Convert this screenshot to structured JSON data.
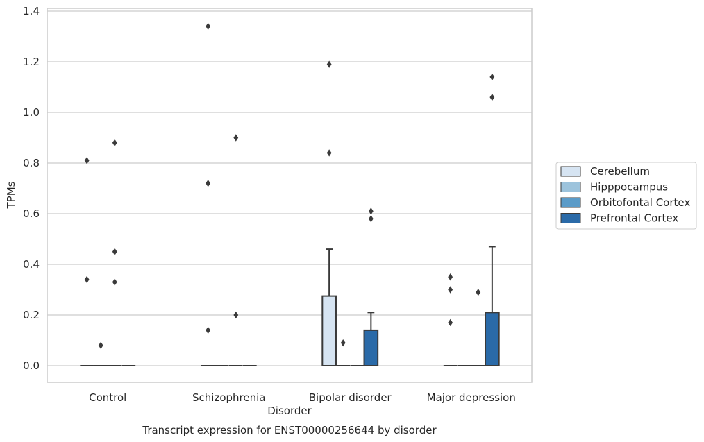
{
  "chart_data": {
    "type": "box",
    "title": "",
    "xlabel": "Disorder",
    "ylabel": "TPMs",
    "caption": "Transcript expression for ENST00000256644 by disorder",
    "categories": [
      "Control",
      "Schizophrenia",
      "Bipolar disorder",
      "Major depression"
    ],
    "ylim": [
      -0.065,
      1.41
    ],
    "yticks": [
      0.0,
      0.2,
      0.4,
      0.6,
      0.8,
      1.0,
      1.2,
      1.4
    ],
    "ytick_labels": [
      "0.0",
      "0.2",
      "0.4",
      "0.6",
      "0.8",
      "1.0",
      "1.2",
      "1.4"
    ],
    "grid": true,
    "legend_position": "right",
    "series": [
      {
        "name": "Cerebellum",
        "color": "#d6e4f2",
        "boxes": [
          {
            "q1": 0,
            "median": 0,
            "q3": 0,
            "whisker_low": 0,
            "whisker_high": 0,
            "outliers": [
              0.81,
              0.34
            ]
          },
          {
            "q1": 0,
            "median": 0,
            "q3": 0,
            "whisker_low": 0,
            "whisker_high": 0,
            "outliers": [
              1.34,
              0.72,
              0.14
            ]
          },
          {
            "q1": 0,
            "median": 0,
            "q3": 0.275,
            "whisker_low": 0,
            "whisker_high": 0.46,
            "outliers": [
              1.19,
              0.84
            ]
          },
          {
            "q1": 0,
            "median": 0,
            "q3": 0,
            "whisker_low": 0,
            "whisker_high": 0,
            "outliers": [
              0.35,
              0.3,
              0.17
            ]
          }
        ]
      },
      {
        "name": "Hipppocampus",
        "color": "#9cc3dc",
        "boxes": [
          {
            "q1": 0,
            "median": 0,
            "q3": 0,
            "whisker_low": 0,
            "whisker_high": 0,
            "outliers": [
              0.08
            ]
          },
          {
            "q1": 0,
            "median": 0,
            "q3": 0,
            "whisker_low": 0,
            "whisker_high": 0,
            "outliers": []
          },
          {
            "q1": 0,
            "median": 0,
            "q3": 0,
            "whisker_low": 0,
            "whisker_high": 0,
            "outliers": [
              0.09
            ]
          },
          {
            "q1": 0,
            "median": 0,
            "q3": 0,
            "whisker_low": 0,
            "whisker_high": 0,
            "outliers": []
          }
        ]
      },
      {
        "name": "Orbitofontal Cortex",
        "color": "#5a9bc8",
        "boxes": [
          {
            "q1": 0,
            "median": 0,
            "q3": 0,
            "whisker_low": 0,
            "whisker_high": 0,
            "outliers": [
              0.88,
              0.45,
              0.33
            ]
          },
          {
            "q1": 0,
            "median": 0,
            "q3": 0,
            "whisker_low": 0,
            "whisker_high": 0,
            "outliers": [
              0.9,
              0.2
            ]
          },
          {
            "q1": 0,
            "median": 0,
            "q3": 0,
            "whisker_low": 0,
            "whisker_high": 0,
            "outliers": []
          },
          {
            "q1": 0,
            "median": 0,
            "q3": 0,
            "whisker_low": 0,
            "whisker_high": 0,
            "outliers": [
              0.29
            ]
          }
        ]
      },
      {
        "name": "Prefrontal Cortex",
        "color": "#2a6aa8",
        "boxes": [
          {
            "q1": 0,
            "median": 0,
            "q3": 0,
            "whisker_low": 0,
            "whisker_high": 0,
            "outliers": []
          },
          {
            "q1": 0,
            "median": 0,
            "q3": 0,
            "whisker_low": 0,
            "whisker_high": 0,
            "outliers": []
          },
          {
            "q1": 0,
            "median": 0,
            "q3": 0.14,
            "whisker_low": 0,
            "whisker_high": 0.21,
            "outliers": [
              0.61,
              0.58
            ]
          },
          {
            "q1": 0,
            "median": 0,
            "q3": 0.21,
            "whisker_low": 0,
            "whisker_high": 0.47,
            "outliers": [
              1.14,
              1.06
            ]
          }
        ]
      }
    ]
  }
}
